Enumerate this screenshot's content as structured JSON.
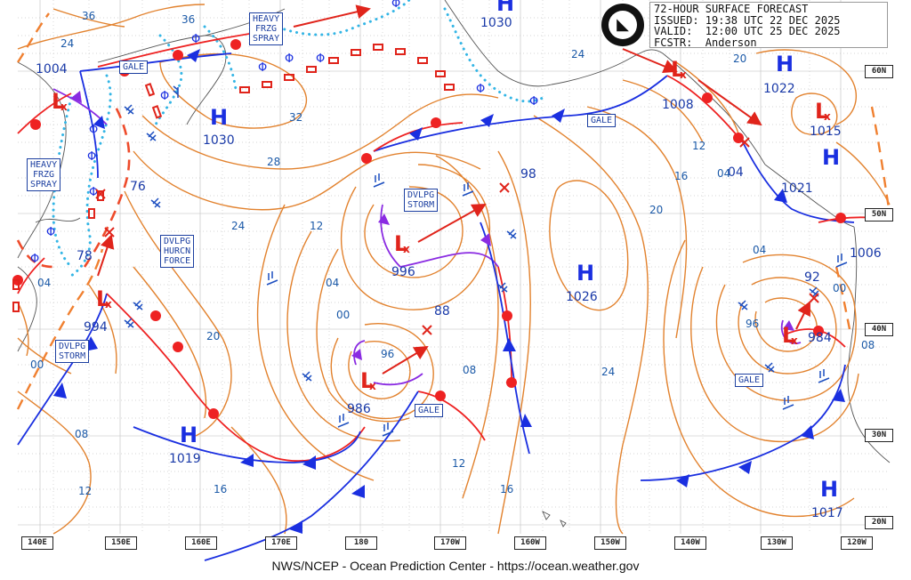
{
  "header": {
    "line1": "72-HOUR SURFACE FORECAST",
    "line2": "ISSUED: 19:38 UTC 22 DEC 2025",
    "line3": "VALID:  12:00 UTC 25 DEC 2025",
    "line4": "FCSTR:  Anderson"
  },
  "logo": "NOAA",
  "credit": "NWS/NCEP - Ocean Prediction Center - https://ocean.weather.gov",
  "longitude_labels": [
    "140E",
    "150E",
    "160E",
    "170E",
    "180",
    "170W",
    "160W",
    "150W",
    "140W",
    "130W",
    "120W"
  ],
  "latitude_labels": [
    "60N",
    "50N",
    "40N",
    "30N",
    "20N"
  ],
  "pressure_centers": [
    {
      "type": "H",
      "value": "1030"
    },
    {
      "type": "H",
      "value": "1030"
    },
    {
      "type": "H",
      "value": "1022"
    },
    {
      "type": "H",
      "value": "1021"
    },
    {
      "type": "H",
      "value": "1026"
    },
    {
      "type": "H",
      "value": "1019"
    },
    {
      "type": "H",
      "value": "1017"
    },
    {
      "type": "L",
      "value": "1004"
    },
    {
      "type": "L",
      "value": "994"
    },
    {
      "type": "L",
      "value": "996"
    },
    {
      "type": "L",
      "value": "986"
    },
    {
      "type": "L",
      "value": "984"
    },
    {
      "type": "L",
      "value": "1015"
    },
    {
      "type": "L",
      "value": "1008"
    },
    {
      "type": "L",
      "value": "1006"
    }
  ],
  "forecast_positions": [
    "98",
    "88",
    "92",
    "76",
    "78",
    "04"
  ],
  "warnings": [
    {
      "id": "heavy_frzg_spray_1",
      "lines": [
        "HEAVY",
        "FRZG",
        "SPRAY"
      ]
    },
    {
      "id": "heavy_frzg_spray_2",
      "lines": [
        "HEAVY",
        "FRZG",
        "SPRAY"
      ]
    },
    {
      "id": "gale_1",
      "lines": [
        "GALE"
      ]
    },
    {
      "id": "gale_2",
      "lines": [
        "GALE"
      ]
    },
    {
      "id": "gale_3",
      "lines": [
        "GALE"
      ]
    },
    {
      "id": "gale_4",
      "lines": [
        "GALE"
      ]
    },
    {
      "id": "dvlpg_storm_1",
      "lines": [
        "DVLPG",
        "STORM"
      ]
    },
    {
      "id": "dvlpg_storm_2",
      "lines": [
        "DVLPG",
        "STORM"
      ]
    },
    {
      "id": "dvlpg_hurcn_force",
      "lines": [
        "DVLPG",
        "HURCN",
        "FORCE"
      ]
    }
  ],
  "isobar_labels": [
    "36",
    "36",
    "24",
    "32",
    "28",
    "24",
    "24",
    "20",
    "20",
    "20",
    "16",
    "16",
    "16",
    "12",
    "12",
    "12",
    "12",
    "08",
    "08",
    "08",
    "04",
    "04",
    "04",
    "04",
    "00",
    "00",
    "00",
    "96",
    "96",
    "24"
  ]
}
